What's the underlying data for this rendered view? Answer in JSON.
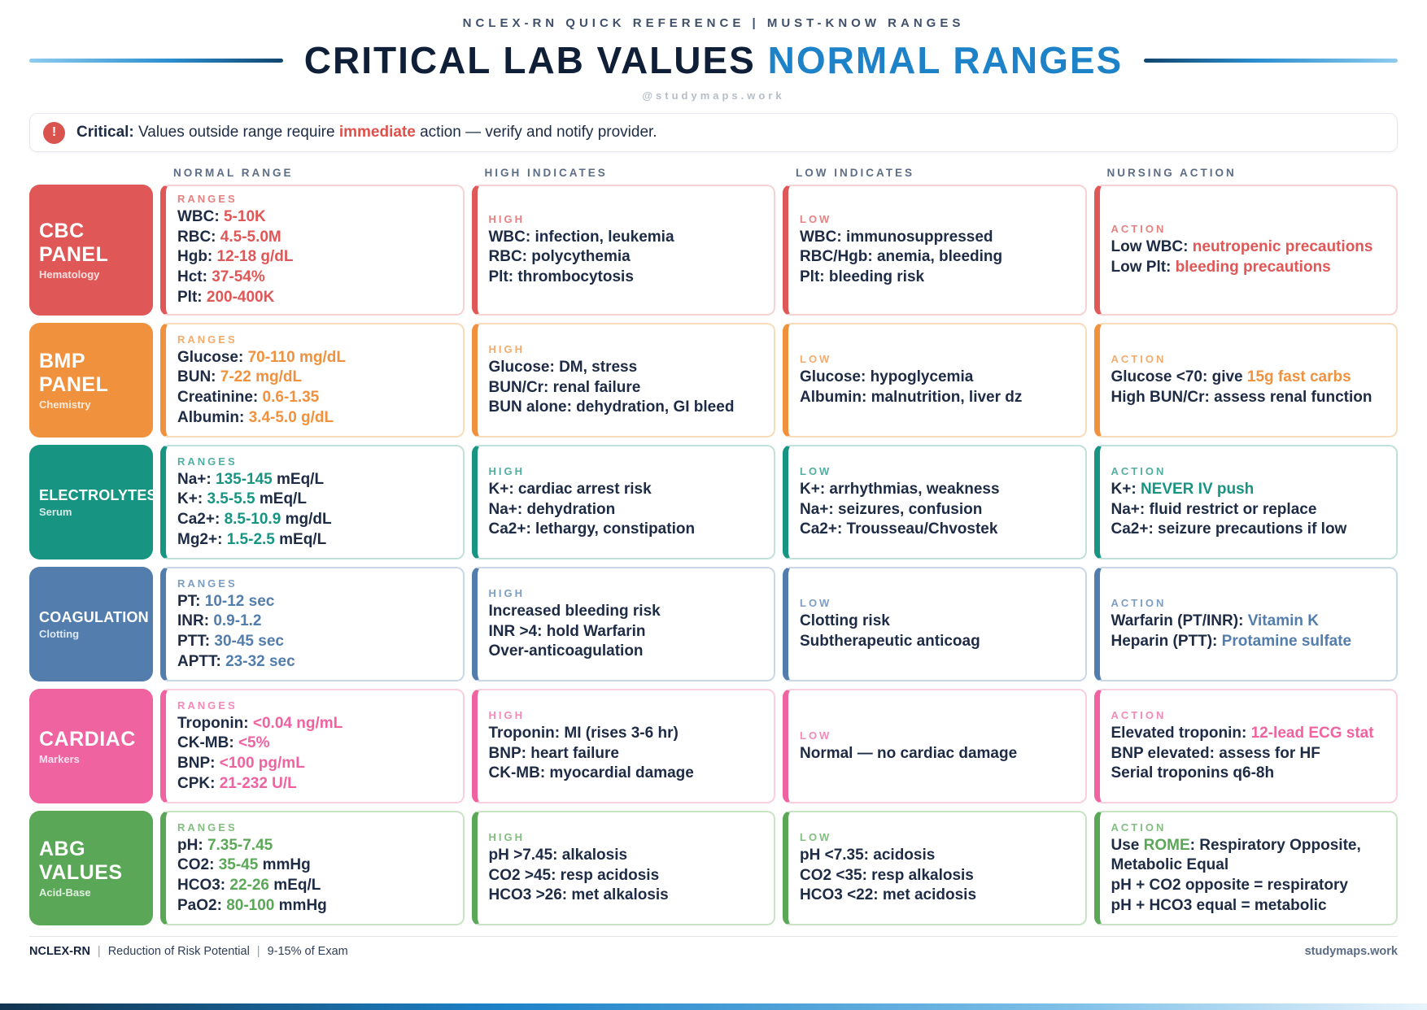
{
  "header": {
    "eyebrow": "NCLEX-RN QUICK REFERENCE | MUST-KNOW RANGES",
    "title_main": "CRITICAL LAB VALUES",
    "title_accent": "NORMAL RANGES",
    "handle": "@studymaps.work"
  },
  "alert": {
    "icon": "exclamation-icon",
    "lead": "Critical:",
    "before_highlight": "Values outside range require",
    "highlight": "immediate",
    "after_highlight": "action — verify and notify provider."
  },
  "column_headers": [
    "NORMAL RANGE",
    "HIGH INDICATES",
    "LOW INDICATES",
    "NURSING ACTION"
  ],
  "rows": [
    {
      "id": "cbc",
      "accent": "#e05757",
      "light": "#f7d2d2",
      "category": {
        "title": "CBC PANEL",
        "subtitle": "Hematology"
      },
      "ranges": {
        "label": "RANGES",
        "lines": [
          [
            {
              "t": "WBC: "
            },
            {
              "t": "5-10K",
              "hl": true
            }
          ],
          [
            {
              "t": "RBC: "
            },
            {
              "t": "4.5-5.0M",
              "hl": true
            }
          ],
          [
            {
              "t": "Hgb: "
            },
            {
              "t": "12-18 g/dL",
              "hl": true
            }
          ],
          [
            {
              "t": "Hct: "
            },
            {
              "t": "37-54%",
              "hl": true
            }
          ],
          [
            {
              "t": "Plt: "
            },
            {
              "t": "200-400K",
              "hl": true
            }
          ]
        ]
      },
      "high": {
        "label": "HIGH",
        "lines": [
          [
            {
              "t": "WBC: infection, leukemia"
            }
          ],
          [
            {
              "t": "RBC: polycythemia"
            }
          ],
          [
            {
              "t": "Plt: thrombocytosis"
            }
          ]
        ]
      },
      "low": {
        "label": "LOW",
        "lines": [
          [
            {
              "t": "WBC: immunosuppressed"
            }
          ],
          [
            {
              "t": "RBC/Hgb: anemia, bleeding"
            }
          ],
          [
            {
              "t": "Plt: bleeding risk"
            }
          ]
        ]
      },
      "action": {
        "label": "ACTION",
        "lines": [
          [
            {
              "t": "Low WBC: "
            },
            {
              "t": "neutropenic precautions",
              "hl": true
            }
          ],
          [
            {
              "t": "Low Plt: "
            },
            {
              "t": "bleeding precautions",
              "hl": true
            }
          ]
        ]
      }
    },
    {
      "id": "bmp",
      "accent": "#f0913d",
      "light": "#f8dcba",
      "category": {
        "title": "BMP PANEL",
        "subtitle": "Chemistry"
      },
      "ranges": {
        "label": "RANGES",
        "lines": [
          [
            {
              "t": "Glucose: "
            },
            {
              "t": "70-110 mg/dL",
              "hl": true
            }
          ],
          [
            {
              "t": "BUN: "
            },
            {
              "t": "7-22 mg/dL",
              "hl": true
            }
          ],
          [
            {
              "t": "Creatinine: "
            },
            {
              "t": "0.6-1.35",
              "hl": true
            }
          ],
          [
            {
              "t": "Albumin: "
            },
            {
              "t": "3.4-5.0 g/dL",
              "hl": true
            }
          ]
        ]
      },
      "high": {
        "label": "HIGH",
        "lines": [
          [
            {
              "t": "Glucose: DM, stress"
            }
          ],
          [
            {
              "t": "BUN/Cr: renal failure"
            }
          ],
          [
            {
              "t": "BUN alone: dehydration, GI bleed"
            }
          ]
        ]
      },
      "low": {
        "label": "LOW",
        "lines": [
          [
            {
              "t": "Glucose: hypoglycemia"
            }
          ],
          [
            {
              "t": "Albumin: malnutrition, liver dz"
            }
          ]
        ]
      },
      "action": {
        "label": "ACTION",
        "lines": [
          [
            {
              "t": "Glucose <70: give "
            },
            {
              "t": "15g fast carbs",
              "hl": true
            }
          ],
          [
            {
              "t": "High BUN/Cr: assess renal function"
            }
          ]
        ]
      }
    },
    {
      "id": "electrolytes",
      "accent": "#189482",
      "light": "#bfe1da",
      "category": {
        "title": "ELECTROLYTES",
        "subtitle": "Serum"
      },
      "ranges": {
        "label": "RANGES",
        "lines": [
          [
            {
              "t": "Na+: "
            },
            {
              "t": "135-145",
              "hl": true
            },
            {
              "t": " mEq/L"
            }
          ],
          [
            {
              "t": "K+: "
            },
            {
              "t": "3.5-5.5",
              "hl": true
            },
            {
              "t": " mEq/L"
            }
          ],
          [
            {
              "t": "Ca2+: "
            },
            {
              "t": "8.5-10.9",
              "hl": true
            },
            {
              "t": " mg/dL"
            }
          ],
          [
            {
              "t": "Mg2+: "
            },
            {
              "t": "1.5-2.5",
              "hl": true
            },
            {
              "t": " mEq/L"
            }
          ]
        ]
      },
      "high": {
        "label": "HIGH",
        "lines": [
          [
            {
              "t": "K+: cardiac arrest risk"
            }
          ],
          [
            {
              "t": "Na+: dehydration"
            }
          ],
          [
            {
              "t": "Ca2+: lethargy, constipation"
            }
          ]
        ]
      },
      "low": {
        "label": "LOW",
        "lines": [
          [
            {
              "t": "K+: arrhythmias, weakness"
            }
          ],
          [
            {
              "t": "Na+: seizures, confusion"
            }
          ],
          [
            {
              "t": "Ca2+: Trousseau/Chvostek"
            }
          ]
        ]
      },
      "action": {
        "label": "ACTION",
        "lines": [
          [
            {
              "t": "K+: "
            },
            {
              "t": "NEVER IV push",
              "hl": true
            }
          ],
          [
            {
              "t": "Na+: fluid restrict or replace"
            }
          ],
          [
            {
              "t": "Ca2+: seizure precautions if low"
            }
          ]
        ]
      }
    },
    {
      "id": "coagulation",
      "accent": "#527dad",
      "light": "#c9d8e7",
      "category": {
        "title": "COAGULATION",
        "subtitle": "Clotting"
      },
      "ranges": {
        "label": "RANGES",
        "lines": [
          [
            {
              "t": "PT: "
            },
            {
              "t": "10-12 sec",
              "hl": true
            }
          ],
          [
            {
              "t": "INR: "
            },
            {
              "t": "0.9-1.2",
              "hl": true
            }
          ],
          [
            {
              "t": "PTT: "
            },
            {
              "t": "30-45 sec",
              "hl": true
            }
          ],
          [
            {
              "t": "APTT: "
            },
            {
              "t": "23-32 sec",
              "hl": true
            }
          ]
        ]
      },
      "high": {
        "label": "HIGH",
        "lines": [
          [
            {
              "t": "Increased bleeding risk"
            }
          ],
          [
            {
              "t": "INR >4: hold Warfarin"
            }
          ],
          [
            {
              "t": "Over-anticoagulation"
            }
          ]
        ]
      },
      "low": {
        "label": "LOW",
        "lines": [
          [
            {
              "t": "Clotting risk"
            }
          ],
          [
            {
              "t": "Subtherapeutic anticoag"
            }
          ]
        ]
      },
      "action": {
        "label": "ACTION",
        "lines": [
          [
            {
              "t": "Warfarin (PT/INR): "
            },
            {
              "t": "Vitamin K",
              "hl": true
            }
          ],
          [
            {
              "t": "Heparin (PTT): "
            },
            {
              "t": "Protamine sulfate",
              "hl": true
            }
          ]
        ]
      }
    },
    {
      "id": "cardiac",
      "accent": "#ef63a1",
      "light": "#f9cfdf",
      "category": {
        "title": "CARDIAC",
        "subtitle": "Markers"
      },
      "ranges": {
        "label": "RANGES",
        "lines": [
          [
            {
              "t": "Troponin: "
            },
            {
              "t": "<0.04 ng/mL",
              "hl": true
            }
          ],
          [
            {
              "t": "CK-MB: "
            },
            {
              "t": "<5%",
              "hl": true
            }
          ],
          [
            {
              "t": "BNP: "
            },
            {
              "t": "<100 pg/mL",
              "hl": true
            }
          ],
          [
            {
              "t": "CPK: "
            },
            {
              "t": "21-232 U/L",
              "hl": true
            }
          ]
        ]
      },
      "high": {
        "label": "HIGH",
        "lines": [
          [
            {
              "t": "Troponin: MI (rises 3-6 hr)"
            }
          ],
          [
            {
              "t": "BNP: heart failure"
            }
          ],
          [
            {
              "t": "CK-MB: myocardial damage"
            }
          ]
        ]
      },
      "low": {
        "label": "LOW",
        "lines": [
          [
            {
              "t": "Normal — no cardiac damage"
            }
          ]
        ]
      },
      "action": {
        "label": "ACTION",
        "lines": [
          [
            {
              "t": "Elevated troponin: "
            },
            {
              "t": "12-lead ECG stat",
              "hl": true
            }
          ],
          [
            {
              "t": "BNP elevated: assess for HF"
            }
          ],
          [
            {
              "t": "Serial troponins q6-8h"
            }
          ]
        ]
      }
    },
    {
      "id": "abg",
      "accent": "#5aa757",
      "light": "#c9e3c5",
      "category": {
        "title": "ABG VALUES",
        "subtitle": "Acid-Base"
      },
      "ranges": {
        "label": "RANGES",
        "lines": [
          [
            {
              "t": "pH: "
            },
            {
              "t": "7.35-7.45",
              "hl": true
            }
          ],
          [
            {
              "t": "CO2: "
            },
            {
              "t": "35-45",
              "hl": true
            },
            {
              "t": " mmHg"
            }
          ],
          [
            {
              "t": "HCO3: "
            },
            {
              "t": "22-26",
              "hl": true
            },
            {
              "t": " mEq/L"
            }
          ],
          [
            {
              "t": "PaO2: "
            },
            {
              "t": "80-100",
              "hl": true
            },
            {
              "t": " mmHg"
            }
          ]
        ]
      },
      "high": {
        "label": "HIGH",
        "lines": [
          [
            {
              "t": "pH >7.45: alkalosis"
            }
          ],
          [
            {
              "t": "CO2 >45: resp acidosis"
            }
          ],
          [
            {
              "t": "HCO3 >26: met alkalosis"
            }
          ]
        ]
      },
      "low": {
        "label": "LOW",
        "lines": [
          [
            {
              "t": "pH <7.35: acidosis"
            }
          ],
          [
            {
              "t": "CO2 <35: resp alkalosis"
            }
          ],
          [
            {
              "t": "HCO3 <22: met acidosis"
            }
          ]
        ]
      },
      "action": {
        "label": "ACTION",
        "lines": [
          [
            {
              "t": "Use "
            },
            {
              "t": "ROME",
              "hl": true
            },
            {
              "t": ": Respiratory Opposite, Metabolic Equal"
            }
          ],
          [
            {
              "t": "pH + CO2 opposite = respiratory"
            }
          ],
          [
            {
              "t": "pH + HCO3 equal = metabolic"
            }
          ]
        ]
      }
    }
  ],
  "footer": {
    "exam": "NCLEX-RN",
    "separator": "|",
    "category": "Reduction of Risk Potential",
    "weight": "9-15% of Exam",
    "brand": "studymaps.work"
  },
  "colors": {
    "title_accent_blue": "#1d82c8",
    "alert_red": "#d9534f",
    "ink_navy": "#1e2b45"
  }
}
